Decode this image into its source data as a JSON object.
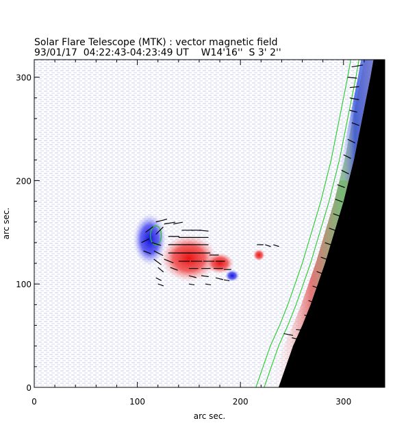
{
  "chart_data": {
    "type": "heatmap",
    "title": "Solar Flare Telescope (MTK) : vector magnetic field",
    "subtitle": "93/01/17  04:22:43-04:23:49 UT    W14'16''  S 3' 2''",
    "xlabel": "arc sec.",
    "ylabel": "arc sec.",
    "xlim": [
      0,
      340
    ],
    "ylim": [
      0,
      317
    ],
    "x_ticks": [
      0,
      100,
      200,
      300
    ],
    "y_ticks": [
      0,
      100,
      200,
      300
    ],
    "field": "longitudinal magnetic field (blue = negative polarity, red = positive polarity) with transverse field vectors",
    "colors": {
      "negative": "#2a2ae8",
      "positive": "#ee2020",
      "contour": "#22cc22",
      "off_limb": "#000000",
      "vector": "#000000"
    },
    "regions": [
      {
        "name": "negative-spot",
        "polarity": "negative",
        "cx": 112,
        "cy": 143,
        "rx": 14,
        "ry": 22
      },
      {
        "name": "positive-spot",
        "polarity": "positive",
        "cx": 150,
        "cy": 125,
        "rx": 24,
        "ry": 20
      },
      {
        "name": "positive-extension",
        "polarity": "positive",
        "cx": 180,
        "cy": 120,
        "rx": 12,
        "ry": 9
      },
      {
        "name": "small-negative",
        "polarity": "negative",
        "cx": 192,
        "cy": 108,
        "rx": 6,
        "ry": 5
      },
      {
        "name": "small-positive",
        "polarity": "positive",
        "cx": 218,
        "cy": 128,
        "rx": 5,
        "ry": 5
      }
    ],
    "vectors": [
      [
        118,
        160,
        12,
        3
      ],
      [
        126,
        158,
        12,
        2
      ],
      [
        135,
        158,
        10,
        2
      ],
      [
        143,
        152,
        12,
        0
      ],
      [
        152,
        152,
        11,
        0
      ],
      [
        160,
        152,
        10,
        -1
      ],
      [
        108,
        150,
        8,
        6
      ],
      [
        118,
        148,
        8,
        8
      ],
      [
        130,
        146,
        12,
        0
      ],
      [
        140,
        145,
        12,
        0
      ],
      [
        150,
        145,
        12,
        0
      ],
      [
        160,
        145,
        10,
        0
      ],
      [
        104,
        140,
        8,
        4
      ],
      [
        114,
        140,
        10,
        -3
      ],
      [
        130,
        138,
        12,
        0
      ],
      [
        140,
        138,
        12,
        0
      ],
      [
        150,
        138,
        12,
        0
      ],
      [
        160,
        138,
        10,
        0
      ],
      [
        106,
        132,
        8,
        -3
      ],
      [
        116,
        132,
        10,
        -5
      ],
      [
        130,
        130,
        12,
        0
      ],
      [
        140,
        130,
        12,
        0
      ],
      [
        150,
        130,
        12,
        0
      ],
      [
        160,
        130,
        12,
        0
      ],
      [
        170,
        128,
        10,
        0
      ],
      [
        116,
        124,
        8,
        -6
      ],
      [
        126,
        124,
        10,
        -4
      ],
      [
        140,
        122,
        12,
        0
      ],
      [
        152,
        122,
        12,
        0
      ],
      [
        164,
        122,
        12,
        0
      ],
      [
        176,
        122,
        10,
        0
      ],
      [
        120,
        116,
        6,
        -5
      ],
      [
        132,
        116,
        8,
        -3
      ],
      [
        150,
        115,
        10,
        0
      ],
      [
        162,
        115,
        10,
        0
      ],
      [
        174,
        115,
        10,
        0
      ],
      [
        184,
        114,
        8,
        0
      ],
      [
        118,
        106,
        6,
        -3
      ],
      [
        150,
        108,
        8,
        -2
      ],
      [
        162,
        108,
        8,
        -1
      ],
      [
        176,
        106,
        8,
        -2
      ],
      [
        184,
        104,
        6,
        -1
      ],
      [
        120,
        100,
        6,
        -2
      ],
      [
        150,
        100,
        6,
        -1
      ],
      [
        166,
        100,
        6,
        -1
      ],
      [
        216,
        138,
        7,
        0
      ],
      [
        224,
        138,
        6,
        -2
      ],
      [
        232,
        138,
        6,
        -2
      ],
      [
        242,
        52,
        10,
        -2
      ],
      [
        250,
        48,
        8,
        -2
      ],
      [
        254,
        56,
        8,
        -1
      ],
      [
        308,
        310,
        12,
        2
      ],
      [
        304,
        300,
        10,
        -1
      ],
      [
        306,
        290,
        10,
        1
      ],
      [
        306,
        280,
        10,
        -2
      ],
      [
        306,
        268,
        8,
        -2
      ],
      [
        308,
        256,
        8,
        -3
      ],
      [
        304,
        240,
        8,
        -4
      ],
      [
        300,
        225,
        8,
        -4
      ],
      [
        298,
        210,
        8,
        -4
      ],
      [
        294,
        196,
        8,
        -3
      ],
      [
        292,
        182,
        8,
        -3
      ],
      [
        290,
        168,
        8,
        -3
      ],
      [
        286,
        154,
        8,
        -3
      ],
      [
        282,
        140,
        8,
        -3
      ],
      [
        278,
        126,
        8,
        -3
      ],
      [
        274,
        112,
        8,
        -3
      ],
      [
        270,
        98,
        8,
        -3
      ],
      [
        266,
        84,
        8,
        -3
      ],
      [
        262,
        70,
        8,
        -3
      ],
      [
        258,
        56,
        8,
        -3
      ],
      [
        254,
        42,
        8,
        -3
      ],
      [
        250,
        28,
        8,
        -3
      ],
      [
        246,
        14,
        8,
        -3
      ]
    ]
  }
}
